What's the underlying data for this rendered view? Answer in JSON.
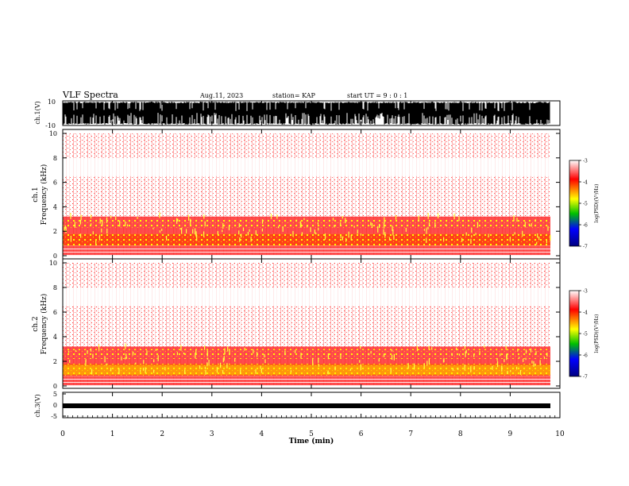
{
  "header": {
    "title": "VLF Spectra",
    "date": "Aug.11, 2023",
    "station": "station= KAP",
    "start": "start  UT  =   9 : 0  : 1"
  },
  "colors": {
    "cmap": [
      "#ffffff",
      "#ff0000",
      "#ffff00",
      "#00c000",
      "#0000ff",
      "#000080"
    ],
    "waveform": "#000000"
  },
  "chart_data": [
    {
      "type": "line",
      "name": "ch1-waveform",
      "ylabel": "ch.1(V)",
      "ylim": [
        -10,
        10
      ],
      "yticks": [
        "10",
        "-10"
      ],
      "xlim": [
        0,
        10
      ],
      "note": "dense black waveform filling most of the range up to ~9.8 min"
    },
    {
      "type": "heatmap",
      "name": "ch1-spectrogram",
      "ylabel": "ch.1\nFrequency  (kHz)",
      "ylim": [
        0,
        10
      ],
      "yticks": [
        "0",
        "2",
        "4",
        "6",
        "8",
        "10"
      ],
      "xlim": [
        0,
        10
      ],
      "colorbar": {
        "label": "log(PSD)(V²/Hz)",
        "range": [
          -7,
          -3
        ],
        "ticks": [
          "-3",
          "-4",
          "-5",
          "-6",
          "-7"
        ]
      },
      "bands_khz": [
        {
          "from": 0.0,
          "to": 0.8,
          "level": "red with white horizontal lines"
        },
        {
          "from": 0.8,
          "to": 1.8,
          "level": "yellow-red (strongest)"
        },
        {
          "from": 1.8,
          "to": 2.2,
          "level": "red"
        },
        {
          "from": 2.2,
          "to": 3.2,
          "level": "red with yellow spots"
        },
        {
          "from": 3.2,
          "to": 6.5,
          "level": "light red speckle"
        },
        {
          "from": 6.5,
          "to": 8.0,
          "level": "sparse (weakest)"
        },
        {
          "from": 8.0,
          "to": 10.0,
          "level": "light red speckle"
        }
      ]
    },
    {
      "type": "heatmap",
      "name": "ch2-spectrogram",
      "ylabel": "ch.2\nFrequency  (kHz)",
      "ylim": [
        0,
        10
      ],
      "yticks": [
        "0",
        "2",
        "4",
        "6",
        "8",
        "10"
      ],
      "xlim": [
        0,
        10
      ],
      "colorbar": {
        "label": "log(PSD)(V²/Hz)",
        "range": [
          -7,
          -3
        ],
        "ticks": [
          "-3",
          "-4",
          "-5",
          "-6",
          "-7"
        ]
      },
      "bands_khz": [
        {
          "from": 0.0,
          "to": 0.8,
          "level": "yellow/red with white lines"
        },
        {
          "from": 0.8,
          "to": 1.8,
          "level": "yellow (strongest)"
        },
        {
          "from": 1.8,
          "to": 2.3,
          "level": "red"
        },
        {
          "from": 2.3,
          "to": 3.0,
          "level": "red with yellow spots"
        },
        {
          "from": 3.0,
          "to": 6.5,
          "level": "light red speckle"
        },
        {
          "from": 6.5,
          "to": 8.0,
          "level": "sparse (weakest)"
        },
        {
          "from": 8.0,
          "to": 10.0,
          "level": "light red speckle"
        }
      ]
    },
    {
      "type": "line",
      "name": "ch3-waveform",
      "ylabel": "ch.3(V)",
      "ylim": [
        -5,
        5
      ],
      "yticks": [
        "5",
        "0",
        "-5"
      ],
      "xlim": [
        0,
        10
      ],
      "xlabel": "Time  (min)",
      "xticks": [
        "0",
        "1",
        "2",
        "3",
        "4",
        "5",
        "6",
        "7",
        "8",
        "9",
        "10"
      ],
      "note": "narrow black band around -0.5 to -1.5 V up to ~9.8 min"
    }
  ]
}
